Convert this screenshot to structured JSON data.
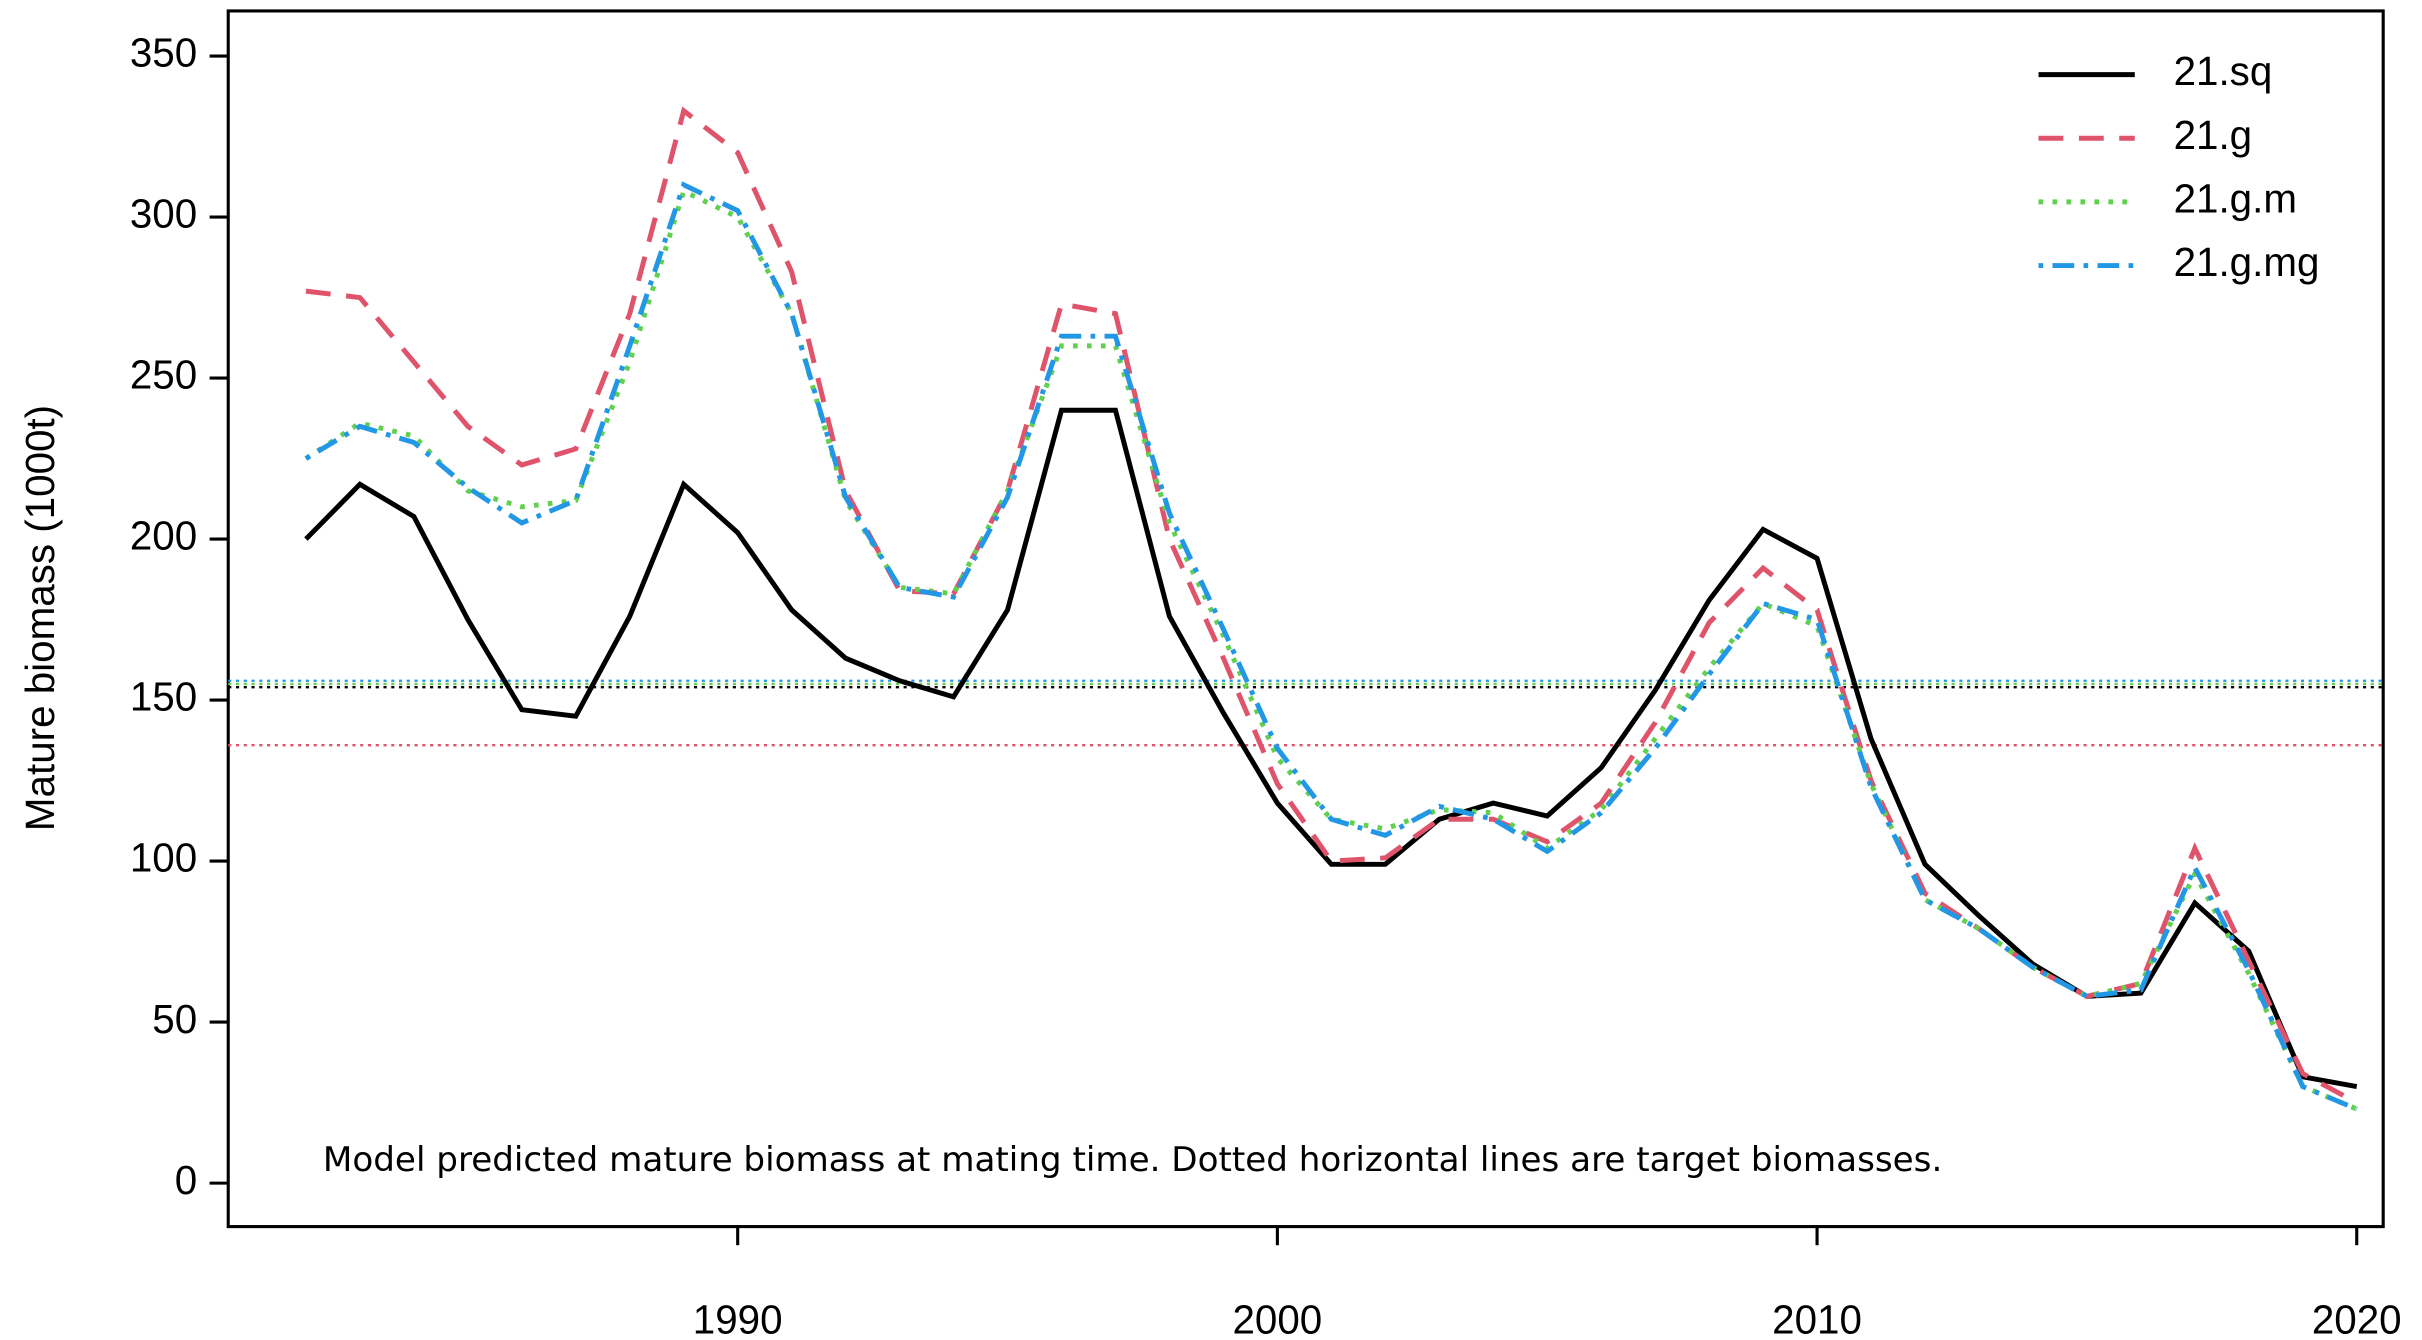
{
  "chart_data": {
    "type": "line",
    "y_label": "Mature biomass (1000t)",
    "annotation": "Model predicted mature biomass at mating time. Dotted horizontal lines are target biomasses.",
    "x": [
      1982,
      1983,
      1984,
      1985,
      1986,
      1987,
      1988,
      1989,
      1990,
      1991,
      1992,
      1993,
      1994,
      1995,
      1996,
      1997,
      1998,
      1999,
      2000,
      2001,
      2002,
      2003,
      2004,
      2005,
      2006,
      2007,
      2008,
      2009,
      2010,
      2011,
      2012,
      2013,
      2014,
      2015,
      2016,
      2017,
      2018,
      2019,
      2020
    ],
    "series": [
      {
        "name": "21.sq",
        "color": "#000000",
        "dash": "solid",
        "values": [
          200,
          217,
          207,
          175,
          147,
          145,
          176,
          217,
          202,
          178,
          163,
          156,
          151,
          178,
          240,
          240,
          176,
          146,
          118,
          99,
          99,
          113,
          118,
          114,
          129,
          153,
          181,
          203,
          194,
          138,
          99,
          83,
          68,
          58,
          59,
          87,
          72,
          33,
          30
        ]
      },
      {
        "name": "21.g",
        "color": "#DF536B",
        "dash": "dashed",
        "values": [
          277,
          275,
          255,
          235,
          223,
          228,
          270,
          333,
          320,
          283,
          215,
          184,
          183,
          215,
          273,
          270,
          200,
          163,
          124,
          100,
          101,
          113,
          113,
          106,
          118,
          143,
          174,
          191,
          178,
          125,
          90,
          79,
          67,
          58,
          62,
          104,
          69,
          34,
          25
        ]
      },
      {
        "name": "21.g.m",
        "color": "#61D04F",
        "dash": "dotted",
        "values": [
          225,
          236,
          232,
          215,
          210,
          212,
          255,
          308,
          300,
          270,
          212,
          185,
          183,
          215,
          260,
          260,
          205,
          170,
          132,
          113,
          110,
          116,
          115,
          104,
          116,
          138,
          160,
          180,
          173,
          124,
          88,
          79,
          67,
          58,
          62,
          96,
          65,
          30,
          23
        ]
      },
      {
        "name": "21.g.mg",
        "color": "#2297E6",
        "dash": "dotdash",
        "values": [
          225,
          235,
          230,
          216,
          205,
          212,
          260,
          310,
          302,
          270,
          213,
          185,
          182,
          213,
          263,
          263,
          208,
          172,
          135,
          113,
          108,
          117,
          113,
          103,
          115,
          135,
          158,
          180,
          175,
          123,
          88,
          79,
          67,
          58,
          60,
          98,
          66,
          30,
          23
        ]
      }
    ],
    "target_lines": [
      {
        "value": 154,
        "color": "#000000"
      },
      {
        "value": 136,
        "color": "#DF536B"
      },
      {
        "value": 155,
        "color": "#61D04F"
      },
      {
        "value": 156,
        "color": "#2297E6"
      }
    ],
    "xlim": [
      1980.56,
      2020.49
    ],
    "xticks": [
      1990,
      2000,
      2010,
      2020
    ],
    "ylim": [
      -13.5,
      364
    ],
    "yticks": [
      0,
      50,
      100,
      150,
      200,
      250,
      300,
      350
    ],
    "legend": "top-right"
  }
}
